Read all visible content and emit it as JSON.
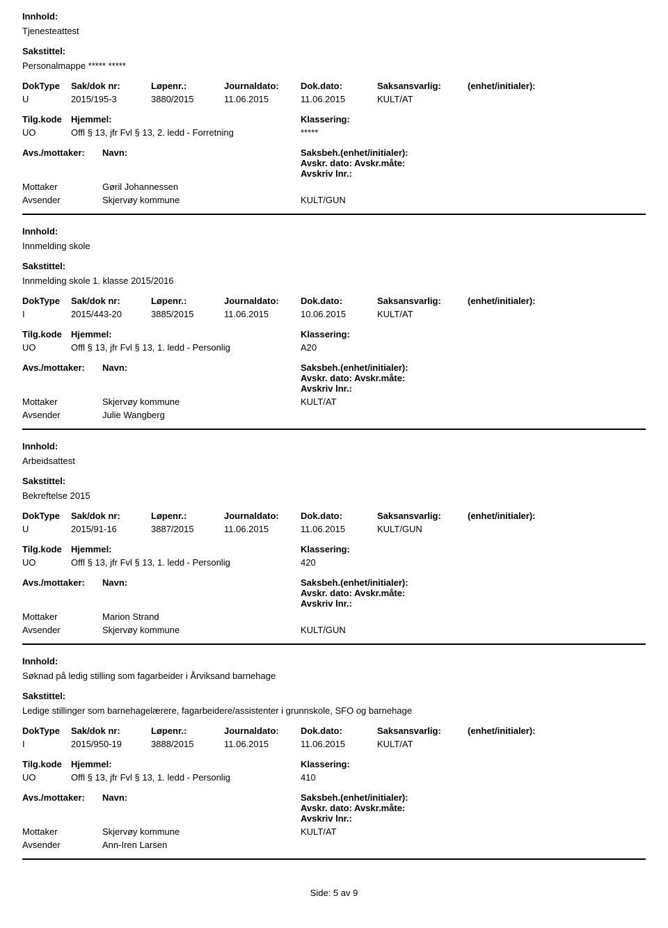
{
  "labels": {
    "innhold": "Innhold:",
    "sakstittel": "Sakstittel:",
    "doktype": "DokType",
    "saknr": "Sak/dok nr:",
    "lopenr": "Løpenr.:",
    "journaldato": "Journaldato:",
    "dokdato": "Dok.dato:",
    "saksansvarlig": "Saksansvarlig:",
    "enhet": "(enhet/initialer):",
    "tilgkode": "Tilg.kode",
    "hjemmel": "Hjemmel:",
    "klassering": "Klassering:",
    "avsmottaker": "Avs./mottaker:",
    "navn": "Navn:",
    "saksbeh": "Saksbeh.(enhet/initialer): Avskr. dato:  Avskr.måte:  Avskriv lnr.:",
    "mottaker": "Mottaker",
    "avsender": "Avsender"
  },
  "records": [
    {
      "innhold": "Tjenesteattest",
      "sakstittel": "Personalmappe ***** *****",
      "doktype": "U",
      "saknr": "2015/195-3",
      "lopenr": "3880/2015",
      "journaldato": "11.06.2015",
      "dokdato": "11.06.2015",
      "saksansvarlig": "KULT/AT",
      "tilgkode": "UO",
      "hjemmel": "Offl § 13, jfr Fvl § 13, 2. ledd - Forretning",
      "klassering": "*****",
      "mottaker_person": "Gøril Johannessen",
      "mottaker_unit": "",
      "avsender_person": "Skjervøy kommune",
      "avsender_unit": "KULT/GUN"
    },
    {
      "innhold": "Innmelding skole",
      "sakstittel": "Innmelding skole 1. klasse 2015/2016",
      "doktype": "I",
      "saknr": "2015/443-20",
      "lopenr": "3885/2015",
      "journaldato": "11.06.2015",
      "dokdato": "10.06.2015",
      "saksansvarlig": "KULT/AT",
      "tilgkode": "UO",
      "hjemmel": "Offl § 13, jfr Fvl § 13, 1. ledd - Personlig",
      "klassering": "A20",
      "mottaker_person": "Skjervøy kommune",
      "mottaker_unit": "KULT/AT",
      "avsender_person": "Julie Wangberg",
      "avsender_unit": ""
    },
    {
      "innhold": "Arbeidsattest",
      "sakstittel": "Bekreftelse 2015",
      "doktype": "U",
      "saknr": "2015/91-16",
      "lopenr": "3887/2015",
      "journaldato": "11.06.2015",
      "dokdato": "11.06.2015",
      "saksansvarlig": "KULT/GUN",
      "tilgkode": "UO",
      "hjemmel": "Offl § 13, jfr Fvl § 13, 1. ledd - Personlig",
      "klassering": "420",
      "mottaker_person": "Marion Strand",
      "mottaker_unit": "",
      "avsender_person": "Skjervøy kommune",
      "avsender_unit": "KULT/GUN"
    },
    {
      "innhold": "Søknad på ledig stilling som fagarbeider i Årviksand barnehage",
      "sakstittel": "Ledige stillinger som barnehagelærere, fagarbeidere/assistenter i grunnskole, SFO og barnehage",
      "doktype": "I",
      "saknr": "2015/950-19",
      "lopenr": "3888/2015",
      "journaldato": "11.06.2015",
      "dokdato": "11.06.2015",
      "saksansvarlig": "KULT/AT",
      "tilgkode": "UO",
      "hjemmel": "Offl § 13, jfr Fvl § 13, 1. ledd - Personlig",
      "klassering": "410",
      "mottaker_person": "Skjervøy kommune",
      "mottaker_unit": "KULT/AT",
      "avsender_person": "Ann-Iren Larsen",
      "avsender_unit": ""
    }
  ],
  "footer": "Side: 5 av 9"
}
